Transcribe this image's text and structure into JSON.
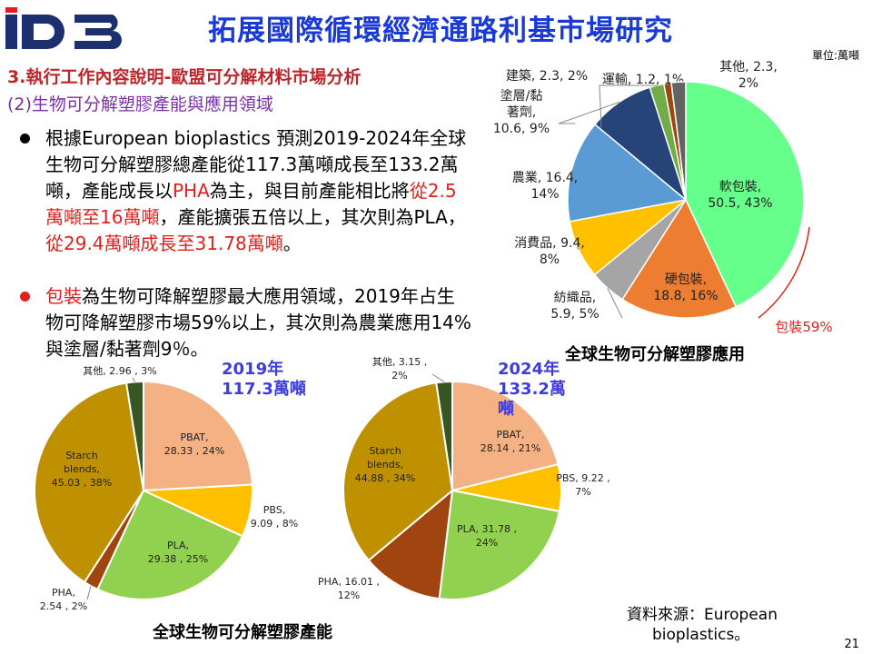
{
  "header": {
    "logo_text": "iD3",
    "title": "拓展國際循環經濟通路利基市場研究"
  },
  "section_heading": "3.執行工作內容說明-歐盟可分解材料市場分析",
  "sub_heading": "(2)生物可分解塑膠產能與應用領域",
  "bullets": [
    {
      "color": "#000000",
      "parts": [
        {
          "text": "根據European bioplastics 預測2019-2024年全球生物可分解塑膠總產能從117.3萬噸成長至133.2萬噸，產能成長以",
          "red": false
        },
        {
          "text": "PHA",
          "red": true
        },
        {
          "text": "為主，與目前產能相比將",
          "red": false
        },
        {
          "text": "從2.5萬噸至16萬噸",
          "red": true
        },
        {
          "text": "，產能擴張五倍以上，其次則為PLA，",
          "red": false
        },
        {
          "text": "從29.4萬噸成長至31.78萬噸",
          "red": true
        },
        {
          "text": "。",
          "red": false
        }
      ]
    },
    {
      "color": "#e0201c",
      "parts": [
        {
          "text": "包裝",
          "red": true
        },
        {
          "text": "為生物可降解塑膠最大應用領域，2019年占生物可降解塑膠市場59%以上，其次則為農業應用14%與塗層/黏著劑9％。",
          "red": false
        }
      ]
    }
  ],
  "unit_label": "單位:萬噸",
  "application_chart_title": "全球生物可分解塑膠應用",
  "packaging_annotation": "包裝59%",
  "production_chart_title": "全球生物可分解塑膠產能",
  "year_2019_label": [
    "2019年",
    "117.3萬噸"
  ],
  "year_2024_label": [
    "2024年",
    "133.2萬",
    "噸"
  ],
  "source": [
    "資料來源：European",
    "bioplastics。"
  ],
  "page_number": "21",
  "colors": {
    "title_blue": "#1a3ad8",
    "heading_red": "#c0252a",
    "sub_purple": "#7b2fa8",
    "highlight_red": "#e0201c"
  },
  "chart_data": [
    {
      "type": "pie",
      "title": "全球生物可分解塑膠應用",
      "slices": [
        {
          "name": "軟包裝",
          "value": 50.5,
          "pct": "43%",
          "color": "#66ff8c",
          "label": [
            "軟包裝,",
            "50.5, 43%"
          ]
        },
        {
          "name": "硬包裝",
          "value": 18.8,
          "pct": "16%",
          "color": "#ed7d31",
          "label": [
            "硬包裝,",
            "18.8, 16%"
          ]
        },
        {
          "name": "紡織品",
          "value": 5.9,
          "pct": "5%",
          "color": "#a5a5a5",
          "label": [
            "紡織品,",
            "5.9, 5%"
          ]
        },
        {
          "name": "消費品",
          "value": 9.4,
          "pct": "8%",
          "color": "#ffc000",
          "label": [
            "消費品, 9.4,",
            "8%"
          ]
        },
        {
          "name": "農業",
          "value": 16.4,
          "pct": "14%",
          "color": "#5b9bd5",
          "label": [
            "農業, 16.4,",
            "14%"
          ]
        },
        {
          "name": "塗層/黏著劑",
          "value": 10.6,
          "pct": "9%",
          "color": "#264478",
          "label": [
            "塗層/黏",
            "著劑,",
            "10.6, 9%"
          ]
        },
        {
          "name": "建築",
          "value": 2.3,
          "pct": "2%",
          "color": "#70ad47",
          "label": [
            "建築, 2.3, 2%"
          ]
        },
        {
          "name": "運輸",
          "value": 1.2,
          "pct": "1%",
          "color": "#9e480e",
          "label": [
            "運輸, 1.2, 1%"
          ]
        },
        {
          "name": "其他",
          "value": 2.3,
          "pct": "2%",
          "color": "#636363",
          "label": [
            "其他, 2.3,",
            "2%"
          ]
        }
      ]
    },
    {
      "type": "pie",
      "title": "2019年 117.3萬噸",
      "slices": [
        {
          "name": "PBAT",
          "value": 28.33,
          "pct": "24%",
          "color": "#f4b183",
          "label": [
            "PBAT,",
            "28.33 , 24%"
          ]
        },
        {
          "name": "PBS",
          "value": 9.09,
          "pct": "8%",
          "color": "#ffc000",
          "label": [
            "PBS,",
            "9.09 , 8%"
          ]
        },
        {
          "name": "PLA",
          "value": 29.38,
          "pct": "25%",
          "color": "#92d050",
          "label": [
            "PLA,",
            "29.38 , 25%"
          ]
        },
        {
          "name": "PHA",
          "value": 2.54,
          "pct": "2%",
          "color": "#a0450f",
          "label": [
            "PHA,",
            "2.54 , 2%"
          ]
        },
        {
          "name": "Starch blends",
          "value": 45.03,
          "pct": "38%",
          "color": "#bf9000",
          "label": [
            "Starch",
            "blends,",
            "45.03 , 38%"
          ]
        },
        {
          "name": "其他",
          "value": 2.96,
          "pct": "3%",
          "color": "#375623",
          "label": [
            "其他, 2.96 , 3%"
          ]
        }
      ]
    },
    {
      "type": "pie",
      "title": "2024年 133.2萬噸",
      "slices": [
        {
          "name": "PBAT",
          "value": 28.14,
          "pct": "21%",
          "color": "#f4b183",
          "label": [
            "PBAT,",
            "28.14 , 21%"
          ]
        },
        {
          "name": "PBS",
          "value": 9.22,
          "pct": "7%",
          "color": "#ffc000",
          "label": [
            "PBS, 9.22 ,",
            "7%"
          ]
        },
        {
          "name": "PLA",
          "value": 31.78,
          "pct": "24%",
          "color": "#92d050",
          "label": [
            "PLA, 31.78 ,",
            "24%"
          ]
        },
        {
          "name": "PHA",
          "value": 16.01,
          "pct": "12%",
          "color": "#a0450f",
          "label": [
            "PHA, 16.01 ,",
            "12%"
          ]
        },
        {
          "name": "Starch blends",
          "value": 44.88,
          "pct": "34%",
          "color": "#bf9000",
          "label": [
            "Starch",
            "blends,",
            "44.88 , 34%"
          ]
        },
        {
          "name": "其他",
          "value": 3.15,
          "pct": "2%",
          "color": "#375623",
          "label": [
            "其他, 3.15 ,",
            "2%"
          ]
        }
      ]
    }
  ]
}
